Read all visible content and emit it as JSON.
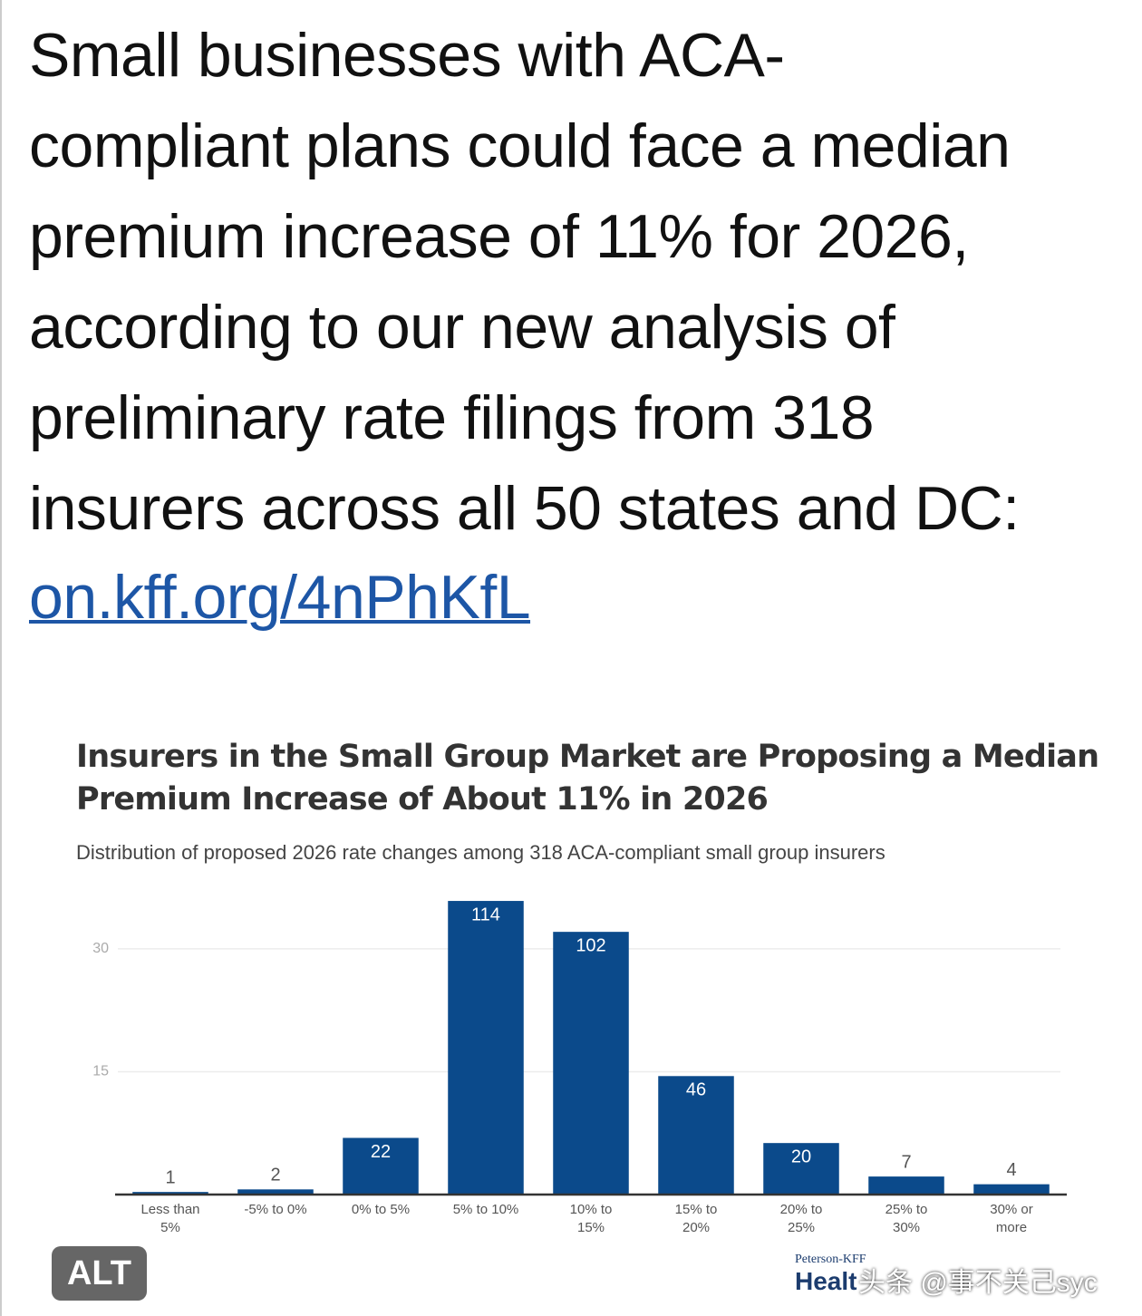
{
  "post": {
    "text_lines": [
      "Small businesses with ACA-",
      "compliant plans could face a median",
      "premium increase of 11% for 2026,",
      "according to our new analysis of",
      "preliminary rate filings from 318",
      "insurers across all 50 states and DC:"
    ],
    "link": "on.kff.org/4nPhKfL",
    "alt_badge": "ALT",
    "watermark": "头条 @事不关己syc"
  },
  "chart_data": {
    "type": "bar",
    "title": [
      "Insurers in the Small Group Market are Proposing a Median",
      "Premium Increase of About 11% in 2026"
    ],
    "subtitle": "Distribution of proposed 2026 rate changes among 318 ACA-compliant small group insurers",
    "categories": [
      "Less than 5%",
      "-5% to 0%",
      "0% to 5%",
      "5% to 10%",
      "10% to 15%",
      "15% to 20%",
      "20% to 25%",
      "25% to 30%",
      "30% or more"
    ],
    "values": [
      1,
      2,
      22,
      114,
      102,
      46,
      20,
      7,
      4
    ],
    "color": "#0b4a8b",
    "ylim": [
      0,
      120
    ],
    "yticks": [
      {
        "value": 47.7,
        "label": "15"
      },
      {
        "value": 95.4,
        "label": "30"
      }
    ],
    "grid": true,
    "source_logo": [
      "Peterson-KFF",
      "Healt"
    ]
  }
}
